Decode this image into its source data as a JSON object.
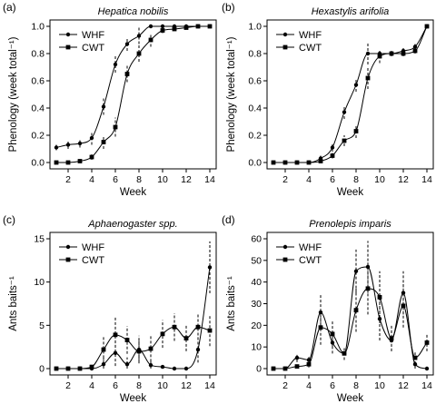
{
  "chart_data": [
    {
      "panel": "(a)",
      "title": "Hepatica nobilis",
      "type": "line",
      "xlabel": "Week",
      "ylabel": "Phenology (week total⁻¹)",
      "xlim": [
        1,
        14
      ],
      "ylim": [
        0,
        1
      ],
      "xticks": [
        2,
        4,
        6,
        8,
        10,
        12,
        14
      ],
      "yticks": [
        0.0,
        0.2,
        0.4,
        0.6,
        0.8,
        1.0
      ],
      "ytick_labels": [
        "0.0",
        "0.2",
        "0.4",
        "0.6",
        "0.8",
        "1.0"
      ],
      "legend_position": "top-left",
      "series": [
        {
          "name": "WHF",
          "marker": "circle",
          "x": [
            1,
            2,
            3,
            4,
            5,
            6,
            7,
            8,
            9,
            10,
            11,
            12,
            13,
            14
          ],
          "y": [
            0.11,
            0.13,
            0.14,
            0.18,
            0.41,
            0.72,
            0.87,
            0.93,
            1.0,
            1.0,
            1.0,
            1.0,
            1.0,
            1.0
          ],
          "err": [
            0.02,
            0.03,
            0.03,
            0.05,
            0.06,
            0.06,
            0.05,
            0.06,
            0.0,
            0.0,
            0.0,
            0.0,
            0.0,
            0.0
          ]
        },
        {
          "name": "CWT",
          "marker": "square",
          "x": [
            1,
            2,
            3,
            4,
            5,
            6,
            7,
            8,
            9,
            10,
            11,
            12,
            13,
            14
          ],
          "y": [
            0.0,
            0.0,
            0.01,
            0.04,
            0.15,
            0.26,
            0.65,
            0.8,
            0.9,
            0.97,
            0.98,
            0.99,
            1.0,
            1.0
          ],
          "err": [
            0.0,
            0.0,
            0.01,
            0.02,
            0.05,
            0.07,
            0.06,
            0.06,
            0.05,
            0.02,
            0.01,
            0.0,
            0.0,
            0.0
          ]
        }
      ]
    },
    {
      "panel": "(b)",
      "title": "Hexastylis arifolia",
      "type": "line",
      "xlabel": "Week",
      "ylabel": "Phenology (week total⁻¹)",
      "xlim": [
        1,
        14
      ],
      "ylim": [
        0,
        1
      ],
      "xticks": [
        2,
        4,
        6,
        8,
        10,
        12,
        14
      ],
      "yticks": [
        0.0,
        0.2,
        0.4,
        0.6,
        0.8,
        1.0
      ],
      "ytick_labels": [
        "0.0",
        "0.2",
        "0.4",
        "0.6",
        "0.8",
        "1.0"
      ],
      "legend_position": "top-left",
      "series": [
        {
          "name": "WHF",
          "marker": "circle",
          "x": [
            1,
            2,
            3,
            4,
            5,
            6,
            7,
            8,
            9,
            10,
            11,
            12,
            13,
            14
          ],
          "y": [
            0.0,
            0.0,
            0.0,
            0.0,
            0.03,
            0.11,
            0.37,
            0.57,
            0.8,
            0.8,
            0.8,
            0.82,
            0.85,
            1.0
          ],
          "err": [
            0.0,
            0.0,
            0.0,
            0.0,
            0.02,
            0.03,
            0.05,
            0.05,
            0.08,
            0.02,
            0.02,
            0.02,
            0.02,
            0.0
          ]
        },
        {
          "name": "CWT",
          "marker": "square",
          "x": [
            1,
            2,
            3,
            4,
            5,
            6,
            7,
            8,
            9,
            10,
            11,
            12,
            13,
            14
          ],
          "y": [
            0.0,
            0.0,
            0.0,
            0.0,
            0.01,
            0.05,
            0.16,
            0.23,
            0.62,
            0.78,
            0.8,
            0.8,
            0.82,
            1.0
          ],
          "err": [
            0.0,
            0.0,
            0.0,
            0.0,
            0.01,
            0.02,
            0.04,
            0.05,
            0.08,
            0.05,
            0.02,
            0.02,
            0.02,
            0.0
          ]
        }
      ]
    },
    {
      "panel": "(c)",
      "title": "Aphaenogaster spp.",
      "type": "line",
      "xlabel": "Week",
      "ylabel": "Ants baits⁻¹",
      "xlim": [
        1,
        14
      ],
      "ylim": [
        0,
        15
      ],
      "xticks": [
        2,
        4,
        6,
        8,
        10,
        12,
        14
      ],
      "yticks": [
        0,
        5,
        10,
        15
      ],
      "ytick_labels": [
        "0",
        "5",
        "10",
        "15"
      ],
      "legend_position": "top-left",
      "series": [
        {
          "name": "WHF",
          "marker": "circle",
          "x": [
            1,
            2,
            3,
            4,
            5,
            6,
            7,
            8,
            9,
            10,
            11,
            12,
            13,
            14
          ],
          "y": [
            0.0,
            0.0,
            0.0,
            0.0,
            0.5,
            1.8,
            0.5,
            2.2,
            0.4,
            0.2,
            0.0,
            0.0,
            2.2,
            11.7
          ],
          "err": [
            0.0,
            0.0,
            0.0,
            0.0,
            0.8,
            1.5,
            0.8,
            1.6,
            0.5,
            0.3,
            0.0,
            0.0,
            1.5,
            3.0
          ]
        },
        {
          "name": "CWT",
          "marker": "square",
          "x": [
            1,
            2,
            3,
            4,
            5,
            6,
            7,
            8,
            9,
            10,
            11,
            12,
            13,
            14
          ],
          "y": [
            0.0,
            0.0,
            0.0,
            0.2,
            2.2,
            3.9,
            3.3,
            2.0,
            2.3,
            4.0,
            4.8,
            3.5,
            4.8,
            4.4
          ],
          "err": [
            0.0,
            0.0,
            0.0,
            0.3,
            1.5,
            2.0,
            1.6,
            1.2,
            1.5,
            1.6,
            1.6,
            1.5,
            1.5,
            1.8
          ]
        }
      ]
    },
    {
      "panel": "(d)",
      "title": "Prenolepis imparis",
      "type": "line",
      "xlabel": "Week",
      "ylabel": "Ants baits⁻¹",
      "xlim": [
        1,
        14
      ],
      "ylim": [
        0,
        60
      ],
      "xticks": [
        2,
        4,
        6,
        8,
        10,
        12,
        14
      ],
      "yticks": [
        0,
        10,
        20,
        30,
        40,
        50,
        60
      ],
      "ytick_labels": [
        "0",
        "10",
        "20",
        "30",
        "40",
        "50",
        "60"
      ],
      "legend_position": "top-left",
      "series": [
        {
          "name": "WHF",
          "marker": "circle",
          "x": [
            1,
            2,
            3,
            4,
            5,
            6,
            7,
            8,
            9,
            10,
            11,
            12,
            13,
            14
          ],
          "y": [
            0.0,
            0.0,
            5.0,
            4.0,
            26.0,
            12.0,
            7.0,
            45.0,
            47.0,
            23.0,
            13.0,
            35.0,
            2.0,
            0.0
          ],
          "err": [
            0.0,
            0.0,
            2.0,
            2.0,
            8.0,
            5.0,
            3.0,
            10.0,
            12.0,
            10.0,
            5.0,
            10.0,
            2.0,
            0.0
          ]
        },
        {
          "name": "CWT",
          "marker": "square",
          "x": [
            1,
            2,
            3,
            4,
            5,
            6,
            7,
            8,
            9,
            10,
            11,
            12,
            13,
            14
          ],
          "y": [
            0.0,
            0.0,
            1.0,
            2.0,
            19.0,
            16.0,
            7.0,
            27.0,
            37.0,
            33.0,
            14.0,
            29.0,
            5.0,
            12.0
          ],
          "err": [
            0.0,
            0.0,
            1.0,
            1.5,
            8.0,
            6.0,
            3.0,
            10.0,
            12.0,
            12.0,
            6.0,
            10.0,
            3.0,
            4.0
          ]
        }
      ]
    }
  ]
}
